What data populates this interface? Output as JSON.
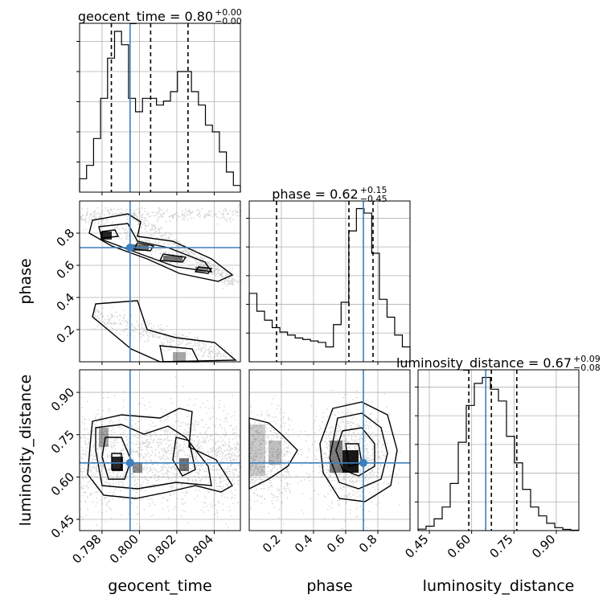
{
  "chart_data": {
    "type": "corner",
    "grid": true,
    "colors": {
      "truth": "#3a7fbf",
      "lines": "#000000",
      "points": "#808080"
    },
    "parameters": [
      {
        "key": "geocent_time",
        "axis_label": "geocent_time",
        "range": [
          0.7968,
          0.8054
        ],
        "ticks": [
          0.798,
          0.8,
          0.802,
          0.804
        ],
        "tick_labels": [
          "0.798",
          "0.800",
          "0.802",
          "0.804"
        ],
        "title": "geocent_time = 0.80",
        "title_upper": "+0.00",
        "title_lower": "−0.00",
        "quantiles": [
          0.7985,
          0.8006,
          0.8026
        ],
        "truth": 0.7995,
        "hist": [
          1,
          2,
          4,
          7,
          10,
          12,
          11,
          7,
          6,
          7,
          7,
          6.5,
          6.8,
          7.5,
          9,
          9,
          7.5,
          6.5,
          5,
          4.5,
          3,
          1.5,
          0.5
        ]
      },
      {
        "key": "phase",
        "axis_label": "phase",
        "range": [
          0.0,
          1.0
        ],
        "ticks": [
          0.2,
          0.4,
          0.6,
          0.8
        ],
        "tick_labels": [
          "0.2",
          "0.4",
          "0.6",
          "0.8"
        ],
        "title": "phase = 0.62",
        "title_upper": "+0.15",
        "title_lower": "−0.45",
        "quantiles": [
          0.17,
          0.62,
          0.77
        ],
        "truth": 0.71,
        "hist": [
          4.6,
          3.4,
          2.8,
          2.3,
          2.0,
          1.8,
          1.6,
          1.5,
          1.4,
          1.3,
          1.0,
          2.5,
          4.0,
          8.8,
          10.3,
          10.0,
          7.3,
          4.2,
          3.0,
          1.8,
          1.0
        ]
      },
      {
        "key": "luminosity_distance",
        "axis_label": "luminosity_distance",
        "range": [
          0.41,
          0.98
        ],
        "ticks": [
          0.45,
          0.6,
          0.75,
          0.9
        ],
        "tick_labels": [
          "0.45",
          "0.60",
          "0.75",
          "0.90"
        ],
        "title": "luminosity_distance = 0.67",
        "title_upper": "+0.09",
        "title_lower": "−0.08",
        "quantiles": [
          0.59,
          0.67,
          0.76
        ],
        "truth": 0.65,
        "hist": [
          0.1,
          0.3,
          0.8,
          1.6,
          3.2,
          6.0,
          8.5,
          10.0,
          10.4,
          9.6,
          8.8,
          6.4,
          4.6,
          2.8,
          1.6,
          1.0,
          0.5,
          0.2,
          0.08,
          0.03
        ]
      }
    ]
  }
}
